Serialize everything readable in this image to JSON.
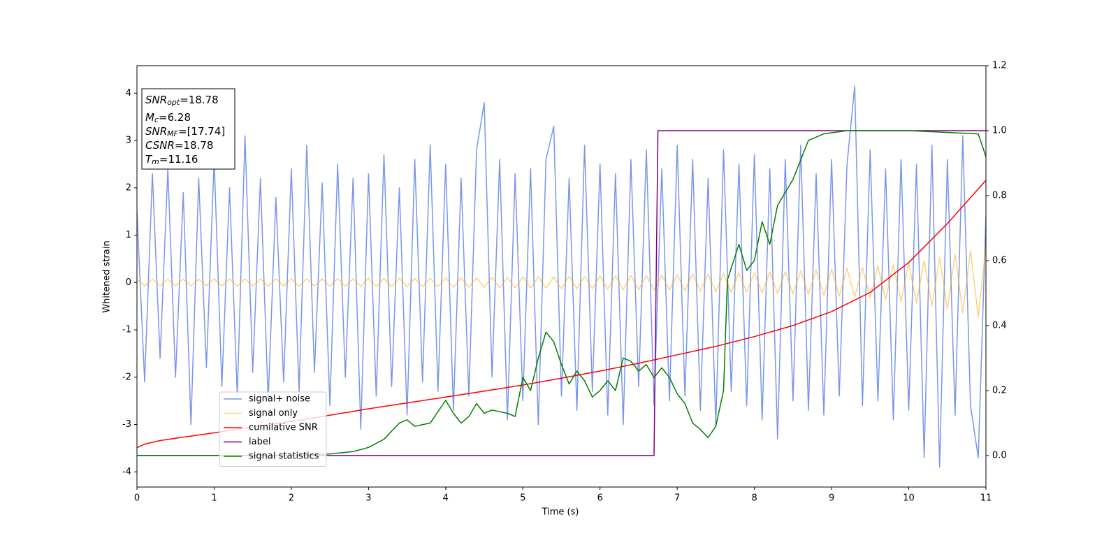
{
  "chart_data": {
    "type": "line",
    "xlabel": "Time (s)",
    "ylabel": "Whitened strain",
    "xlim": [
      0,
      11
    ],
    "xticks": [
      0,
      1,
      2,
      3,
      4,
      5,
      6,
      7,
      8,
      9,
      10,
      11
    ],
    "ylim": [
      -4.32,
      4.58
    ],
    "yticks": [
      -4,
      -3,
      -2,
      -1,
      0,
      1,
      2,
      3,
      4
    ],
    "y2lim": [
      -0.097,
      1.2
    ],
    "y2ticks": [
      {
        "value": 0,
        "label": "0.0"
      },
      0.2,
      0.4,
      0.6,
      0.8,
      {
        "value": 1,
        "label": "1.0"
      },
      1.2
    ],
    "legend": "lower left",
    "annotation": [
      {
        "main": "SNR",
        "sub": "opt",
        "rest": "=18.78"
      },
      {
        "main": "M",
        "sub": "c",
        "rest": "=6.28"
      },
      {
        "main": "SNR",
        "sub": "MF",
        "rest": "=[17.74]"
      },
      {
        "main": "CSNR",
        "rest": "=18.78"
      },
      {
        "main": "T",
        "sub": "m",
        "rest": "=11.16"
      }
    ],
    "series": [
      {
        "name": "signal+ noise",
        "color": "#4169e1",
        "alpha": 0.7,
        "x": [
          0,
          0.1,
          0.2,
          0.3,
          0.4,
          0.5,
          0.6,
          0.7,
          0.8,
          0.9,
          1,
          1.1,
          1.2,
          1.3,
          1.4,
          1.5,
          1.6,
          1.7,
          1.8,
          1.9,
          2,
          2.1,
          2.2,
          2.3,
          2.4,
          2.5,
          2.6,
          2.7,
          2.8,
          2.9,
          3,
          3.1,
          3.2,
          3.3,
          3.4,
          3.5,
          3.6,
          3.7,
          3.8,
          3.9,
          4,
          4.1,
          4.2,
          4.3,
          4.4,
          4.5,
          4.6,
          4.7,
          4.8,
          4.9,
          5,
          5.1,
          5.2,
          5.3,
          5.4,
          5.5,
          5.6,
          5.7,
          5.8,
          5.9,
          6,
          6.1,
          6.2,
          6.3,
          6.4,
          6.5,
          6.6,
          6.7,
          6.8,
          6.9,
          7,
          7.1,
          7.2,
          7.3,
          7.4,
          7.5,
          7.6,
          7.7,
          7.8,
          7.9,
          8,
          8.1,
          8.2,
          8.3,
          8.4,
          8.5,
          8.6,
          8.7,
          8.8,
          8.9,
          9,
          9.1,
          9.2,
          9.3,
          9.4,
          9.5,
          9.6,
          9.7,
          9.8,
          9.9,
          10,
          10.1,
          10.2,
          10.3,
          10.4,
          10.5,
          10.6,
          10.7,
          10.8,
          10.9,
          11
        ],
        "values": [
          1.5,
          -2.1,
          2.3,
          -1.6,
          2.4,
          -2.0,
          1.9,
          -3.0,
          2.2,
          -1.8,
          2.6,
          -2.2,
          2.0,
          -2.4,
          3.1,
          -1.9,
          2.2,
          -2.5,
          1.8,
          -2.1,
          2.4,
          -2.3,
          2.9,
          -1.9,
          2.1,
          -2.6,
          2.5,
          -2.0,
          2.2,
          -3.1,
          2.3,
          -2.4,
          2.7,
          -2.2,
          2.0,
          -2.8,
          2.6,
          -2.1,
          2.9,
          -2.3,
          2.5,
          -2.7,
          2.2,
          -2.4,
          2.8,
          3.8,
          -2.0,
          2.6,
          -2.9,
          2.3,
          -2.5,
          2.4,
          -3.0,
          2.6,
          3.3,
          -2.4,
          2.2,
          -2.7,
          2.9,
          -2.3,
          2.5,
          -2.8,
          2.3,
          -3.0,
          2.6,
          -2.2,
          2.8,
          -2.6,
          2.4,
          -2.5,
          2.9,
          -2.4,
          2.6,
          -2.7,
          2.2,
          -3.0,
          2.8,
          -2.3,
          2.5,
          -2.6,
          2.7,
          -2.9,
          2.4,
          -3.3,
          2.6,
          -2.5,
          2.9,
          -2.7,
          2.3,
          -2.8,
          2.6,
          -2.4,
          2.5,
          4.15,
          -2.6,
          2.8,
          -2.5,
          2.4,
          -2.9,
          2.6,
          -2.7,
          2.5,
          -3.7,
          2.9,
          -3.9,
          2.6,
          -2.8,
          3.1,
          -2.6,
          -3.7,
          1.4
        ]
      },
      {
        "name": "signal only",
        "color": "#ffa500",
        "alpha": 0.5,
        "x": [
          0,
          0.1,
          0.2,
          0.3,
          0.4,
          0.5,
          0.6,
          0.7,
          0.8,
          0.9,
          1,
          1.1,
          1.2,
          1.3,
          1.4,
          1.5,
          1.6,
          1.7,
          1.8,
          1.9,
          2,
          2.1,
          2.2,
          2.3,
          2.4,
          2.5,
          2.6,
          2.7,
          2.8,
          2.9,
          3,
          3.1,
          3.2,
          3.3,
          3.4,
          3.5,
          3.6,
          3.7,
          3.8,
          3.9,
          4,
          4.1,
          4.2,
          4.3,
          4.4,
          4.5,
          4.6,
          4.7,
          4.8,
          4.9,
          5,
          5.1,
          5.2,
          5.3,
          5.4,
          5.5,
          5.6,
          5.7,
          5.8,
          5.9,
          6,
          6.1,
          6.2,
          6.3,
          6.4,
          6.5,
          6.6,
          6.7,
          6.8,
          6.9,
          7,
          7.1,
          7.2,
          7.3,
          7.4,
          7.5,
          7.6,
          7.7,
          7.8,
          7.9,
          8,
          8.1,
          8.2,
          8.3,
          8.4,
          8.5,
          8.6,
          8.7,
          8.8,
          8.9,
          9,
          9.1,
          9.2,
          9.3,
          9.4,
          9.5,
          9.6,
          9.7,
          9.8,
          9.9,
          10,
          10.1,
          10.2,
          10.3,
          10.4,
          10.5,
          10.6,
          10.7,
          10.8,
          10.9,
          11
        ],
        "values": [
          0.07,
          -0.07,
          0.07,
          -0.07,
          0.07,
          -0.07,
          0.07,
          -0.07,
          0.07,
          -0.07,
          0.075,
          -0.075,
          0.075,
          -0.075,
          0.075,
          -0.075,
          0.075,
          -0.075,
          0.075,
          -0.075,
          0.08,
          -0.08,
          0.08,
          -0.08,
          0.08,
          -0.08,
          0.08,
          -0.08,
          0.08,
          -0.08,
          0.09,
          -0.09,
          0.09,
          -0.09,
          0.09,
          -0.09,
          0.09,
          -0.09,
          0.09,
          -0.09,
          0.1,
          -0.1,
          0.1,
          -0.1,
          0.1,
          -0.1,
          0.11,
          -0.11,
          0.11,
          -0.11,
          0.12,
          -0.12,
          0.12,
          -0.12,
          0.12,
          -0.13,
          0.13,
          -0.13,
          0.13,
          -0.13,
          0.14,
          -0.14,
          0.14,
          -0.15,
          0.15,
          -0.15,
          0.15,
          -0.16,
          0.16,
          -0.16,
          0.17,
          -0.17,
          0.18,
          -0.18,
          0.18,
          -0.19,
          0.19,
          -0.2,
          0.2,
          -0.2,
          0.21,
          -0.22,
          0.22,
          -0.23,
          0.23,
          -0.24,
          0.25,
          -0.25,
          0.26,
          -0.27,
          0.28,
          -0.29,
          0.3,
          -0.31,
          0.32,
          -0.33,
          0.35,
          -0.36,
          0.38,
          -0.4,
          0.42,
          -0.44,
          0.47,
          -0.5,
          0.53,
          -0.56,
          0.6,
          -0.64,
          0.68,
          -0.73,
          0.78
        ]
      },
      {
        "name": "cumilative SNR",
        "color": "#ff0000",
        "axis": "y2",
        "x": [
          0,
          0.1,
          0.3,
          0.5,
          1,
          1.5,
          2,
          2.5,
          3,
          3.5,
          4,
          4.5,
          5,
          5.5,
          6,
          6.5,
          7,
          7.5,
          8,
          8.5,
          9,
          9.5,
          10,
          10.5,
          11
        ],
        "values": [
          0.024,
          0.035,
          0.046,
          0.053,
          0.07,
          0.088,
          0.105,
          0.124,
          0.144,
          0.162,
          0.18,
          0.198,
          0.217,
          0.238,
          0.26,
          0.284,
          0.31,
          0.336,
          0.366,
          0.4,
          0.443,
          0.502,
          0.594,
          0.714,
          0.847
        ]
      },
      {
        "name": "label",
        "color": "#800080",
        "axis": "y2",
        "x": [
          0,
          6.7,
          6.75,
          11
        ],
        "values": [
          0,
          0,
          1,
          1
        ]
      },
      {
        "name": "signal statistics",
        "color": "#008000",
        "axis": "y2",
        "x": [
          0,
          1,
          2,
          2.5,
          2.8,
          3,
          3.2,
          3.4,
          3.5,
          3.6,
          3.8,
          4,
          4.1,
          4.2,
          4.3,
          4.4,
          4.5,
          4.6,
          4.8,
          4.9,
          5,
          5.1,
          5.2,
          5.3,
          5.4,
          5.5,
          5.6,
          5.7,
          5.8,
          5.9,
          6,
          6.1,
          6.2,
          6.3,
          6.4,
          6.5,
          6.6,
          6.7,
          6.8,
          6.9,
          7,
          7.1,
          7.2,
          7.3,
          7.4,
          7.5,
          7.6,
          7.65,
          7.8,
          7.9,
          8,
          8.1,
          8.2,
          8.3,
          8.5,
          8.7,
          8.9,
          9.2,
          10,
          10.9,
          11
        ],
        "values": [
          0,
          0,
          0,
          0.005,
          0.012,
          0.025,
          0.05,
          0.1,
          0.11,
          0.09,
          0.1,
          0.17,
          0.13,
          0.1,
          0.12,
          0.16,
          0.13,
          0.14,
          0.13,
          0.12,
          0.24,
          0.2,
          0.3,
          0.38,
          0.35,
          0.28,
          0.22,
          0.26,
          0.23,
          0.18,
          0.2,
          0.23,
          0.2,
          0.3,
          0.29,
          0.26,
          0.28,
          0.24,
          0.27,
          0.24,
          0.19,
          0.16,
          0.1,
          0.08,
          0.055,
          0.09,
          0.2,
          0.54,
          0.65,
          0.57,
          0.6,
          0.72,
          0.65,
          0.77,
          0.85,
          0.97,
          0.99,
          1,
          1,
          0.99,
          0.92
        ]
      }
    ]
  }
}
